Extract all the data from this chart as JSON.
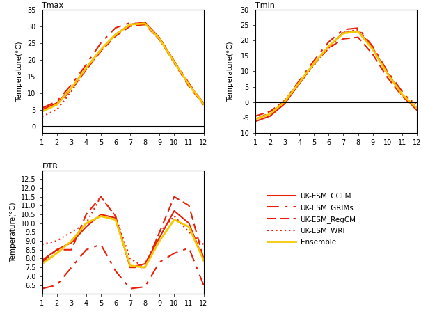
{
  "months": [
    1,
    2,
    3,
    4,
    5,
    6,
    7,
    8,
    9,
    10,
    11,
    12
  ],
  "tmax": {
    "CCLM": [
      5.0,
      7.0,
      11.5,
      17.5,
      23.0,
      27.5,
      30.5,
      31.2,
      26.5,
      19.5,
      12.5,
      7.0
    ],
    "GRIMs": [
      5.5,
      7.5,
      12.5,
      18.5,
      25.0,
      29.5,
      31.0,
      30.5,
      26.0,
      19.5,
      13.0,
      6.5
    ],
    "RegCM": [
      4.5,
      6.5,
      11.0,
      17.0,
      22.5,
      27.0,
      30.0,
      30.5,
      26.0,
      19.0,
      12.0,
      6.5
    ],
    "WRF": [
      3.0,
      5.0,
      10.5,
      17.0,
      22.5,
      27.5,
      30.5,
      31.0,
      26.5,
      19.5,
      12.5,
      6.5
    ],
    "Ensemble": [
      4.5,
      6.5,
      11.5,
      17.5,
      23.0,
      27.5,
      30.5,
      30.8,
      26.2,
      19.3,
      12.5,
      6.7
    ]
  },
  "tmin": {
    "CCLM": [
      -6.2,
      -4.5,
      -0.5,
      6.0,
      12.5,
      18.0,
      22.5,
      23.0,
      17.5,
      9.5,
      2.5,
      -2.5
    ],
    "GRIMs": [
      -5.5,
      -3.5,
      0.5,
      7.0,
      13.5,
      19.5,
      23.5,
      24.0,
      18.0,
      10.0,
      3.5,
      -2.0
    ],
    "RegCM": [
      -4.5,
      -3.0,
      0.5,
      6.5,
      12.5,
      17.5,
      20.5,
      21.0,
      15.5,
      8.0,
      2.0,
      -2.5
    ],
    "WRF": [
      -5.5,
      -4.0,
      0.0,
      6.0,
      12.0,
      17.5,
      22.5,
      23.5,
      17.5,
      9.5,
      2.0,
      -0.5
    ],
    "Ensemble": [
      -5.5,
      -3.8,
      0.2,
      6.4,
      12.6,
      18.1,
      22.3,
      22.9,
      17.1,
      9.2,
      2.5,
      -1.9
    ]
  },
  "dtr": {
    "CCLM": [
      7.9,
      8.5,
      8.9,
      9.8,
      10.5,
      10.3,
      7.5,
      7.7,
      9.2,
      10.7,
      10.0,
      7.9
    ],
    "GRIMs": [
      6.3,
      6.5,
      7.5,
      8.5,
      8.8,
      7.3,
      6.3,
      6.4,
      7.8,
      8.3,
      8.6,
      6.5
    ],
    "RegCM": [
      7.8,
      8.5,
      8.5,
      10.5,
      11.5,
      10.4,
      7.5,
      7.5,
      9.5,
      11.5,
      11.0,
      8.0
    ],
    "WRF": [
      8.8,
      9.0,
      9.5,
      10.0,
      11.5,
      10.4,
      8.0,
      7.5,
      9.5,
      10.4,
      9.5,
      8.8
    ],
    "Ensemble": [
      7.7,
      8.3,
      9.0,
      10.0,
      10.4,
      10.2,
      7.6,
      7.5,
      9.0,
      10.2,
      9.8,
      7.9
    ]
  },
  "colors": {
    "CCLM": "#e8200a",
    "GRIMs": "#e8200a",
    "RegCM": "#e8200a",
    "WRF": "#e8200a",
    "Ensemble": "#f5c800"
  },
  "dashes": {
    "CCLM": [
      1,
      0
    ],
    "GRIMs": [
      8,
      4,
      2,
      4
    ],
    "RegCM": [
      6,
      3,
      6,
      3
    ],
    "WRF": [
      1,
      2
    ],
    "Ensemble": [
      1,
      0
    ]
  },
  "linewidths": {
    "CCLM": 1.5,
    "GRIMs": 1.5,
    "RegCM": 1.5,
    "WRF": 1.5,
    "Ensemble": 2.0
  },
  "legend_labels": {
    "CCLM": "UK-ESM_CCLM",
    "GRIMs": "UK-ESM_GRIMs",
    "RegCM": "UK-ESM_RegCM",
    "WRF": "UK-ESM_WRF",
    "Ensemble": "Ensemble"
  },
  "tmax_ylim": [
    -2,
    35
  ],
  "tmin_ylim": [
    -10,
    30
  ],
  "dtr_ylim": [
    6.0,
    13.0
  ],
  "tmax_yticks": [
    0,
    5,
    10,
    15,
    20,
    25,
    30,
    35
  ],
  "tmin_yticks": [
    -10,
    -5,
    0,
    5,
    10,
    15,
    20,
    25,
    30
  ],
  "dtr_yticks": [
    6.5,
    7.0,
    7.5,
    8.0,
    8.5,
    9.0,
    9.5,
    10.0,
    10.5,
    11.0,
    11.5,
    12.0,
    12.5
  ],
  "subplot_titles": {
    "tmax": "Tmax",
    "tmin": "Tmin",
    "dtr": "DTR"
  },
  "ylabel": "Temperature(°C)"
}
